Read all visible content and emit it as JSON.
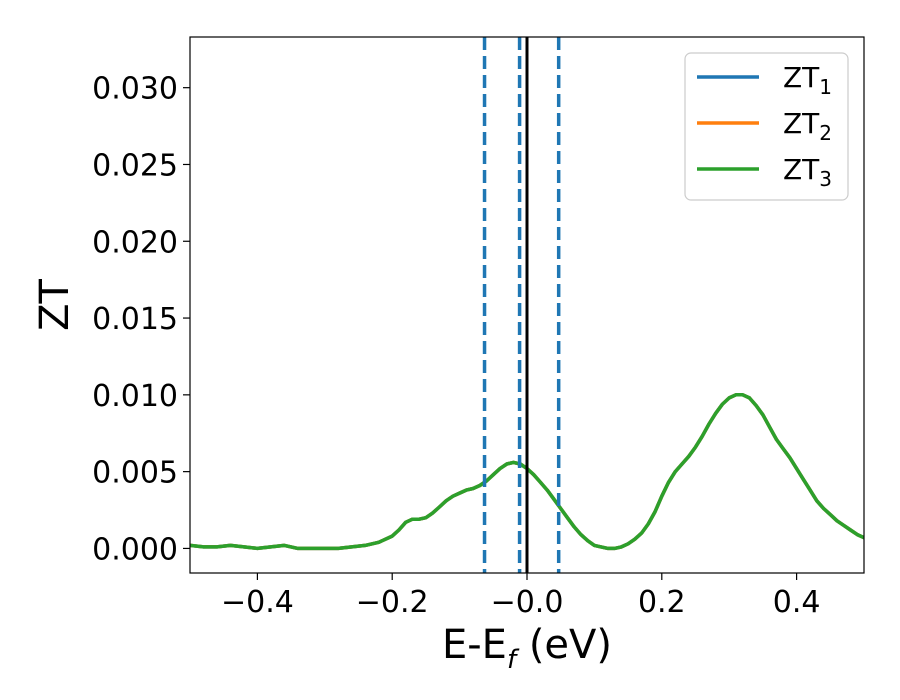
{
  "chart_data": {
    "type": "line",
    "xlabel": "E-E",
    "xlabel_sub": "f",
    "xlabel_unit": " (eV)",
    "ylabel": "ZT",
    "xlim": [
      -0.5,
      0.5
    ],
    "ylim": [
      -0.0016,
      0.0333
    ],
    "x_ticks": [
      -0.4,
      -0.2,
      0.0,
      0.2,
      0.4
    ],
    "x_tick_labels": [
      "−0.4",
      "−0.2",
      "−0.0",
      "0.2",
      "0.4"
    ],
    "y_ticks": [
      0.0,
      0.005,
      0.01,
      0.015,
      0.02,
      0.025,
      0.03
    ],
    "y_tick_labels": [
      "0.000",
      "0.005",
      "0.010",
      "0.015",
      "0.020",
      "0.025",
      "0.030"
    ],
    "grid": false,
    "legend_position": "top-right",
    "series": [
      {
        "name": "ZT",
        "sub": "1",
        "color": "#1f77b4"
      },
      {
        "name": "ZT",
        "sub": "2",
        "color": "#ff7f0e"
      },
      {
        "name": "ZT",
        "sub": "3",
        "color": "#2ca02c"
      }
    ],
    "x": [
      -0.5,
      -0.48,
      -0.46,
      -0.44,
      -0.42,
      -0.4,
      -0.38,
      -0.36,
      -0.34,
      -0.32,
      -0.3,
      -0.28,
      -0.26,
      -0.24,
      -0.22,
      -0.2,
      -0.19,
      -0.18,
      -0.17,
      -0.16,
      -0.15,
      -0.14,
      -0.13,
      -0.12,
      -0.11,
      -0.1,
      -0.09,
      -0.08,
      -0.07,
      -0.06,
      -0.05,
      -0.04,
      -0.03,
      -0.02,
      -0.01,
      0.0,
      0.01,
      0.02,
      0.03,
      0.04,
      0.05,
      0.06,
      0.07,
      0.08,
      0.09,
      0.1,
      0.11,
      0.12,
      0.13,
      0.14,
      0.15,
      0.16,
      0.17,
      0.18,
      0.19,
      0.2,
      0.21,
      0.22,
      0.23,
      0.24,
      0.25,
      0.26,
      0.27,
      0.28,
      0.29,
      0.3,
      0.31,
      0.32,
      0.33,
      0.34,
      0.35,
      0.36,
      0.37,
      0.38,
      0.39,
      0.4,
      0.41,
      0.42,
      0.43,
      0.44,
      0.45,
      0.46,
      0.47,
      0.48,
      0.49,
      0.5
    ],
    "y": [
      0.0002,
      0.0001,
      0.0001,
      0.0002,
      0.0001,
      0.0,
      0.0001,
      0.0002,
      0.0,
      0.0,
      0.0,
      0.0,
      0.0001,
      0.0002,
      0.0004,
      0.0008,
      0.0012,
      0.0017,
      0.0019,
      0.0019,
      0.002,
      0.0023,
      0.0027,
      0.0031,
      0.0034,
      0.0036,
      0.0038,
      0.0039,
      0.0041,
      0.0044,
      0.0048,
      0.0052,
      0.0055,
      0.0056,
      0.0055,
      0.0052,
      0.0048,
      0.0043,
      0.0038,
      0.0032,
      0.0026,
      0.002,
      0.0014,
      0.0009,
      0.0005,
      0.0002,
      0.0001,
      0.0,
      0.0,
      0.0001,
      0.0003,
      0.0006,
      0.001,
      0.0016,
      0.0024,
      0.0034,
      0.0043,
      0.005,
      0.0055,
      0.006,
      0.0066,
      0.0073,
      0.0081,
      0.0088,
      0.0094,
      0.0098,
      0.01,
      0.01,
      0.0098,
      0.0093,
      0.0087,
      0.0079,
      0.0071,
      0.0065,
      0.0059,
      0.0052,
      0.0045,
      0.0038,
      0.0031,
      0.0026,
      0.0022,
      0.0018,
      0.0015,
      0.0012,
      0.0009,
      0.0007
    ],
    "vertical_lines": [
      {
        "x": -0.063,
        "style": "dashed",
        "color": "#1f77b4"
      },
      {
        "x": -0.011,
        "style": "dashed",
        "color": "#1f77b4"
      },
      {
        "x": 0.047,
        "style": "dashed",
        "color": "#1f77b4"
      },
      {
        "x": 0.0,
        "style": "solid",
        "color": "#000000"
      }
    ]
  }
}
